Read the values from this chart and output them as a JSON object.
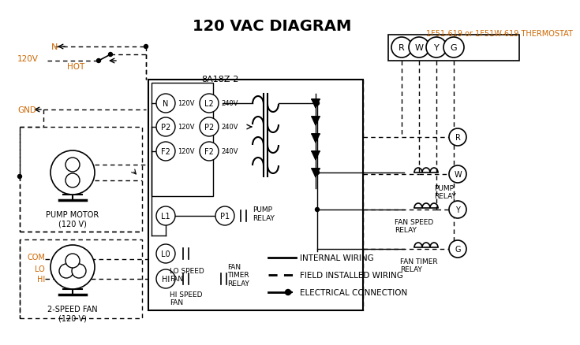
{
  "title": "120 VAC DIAGRAM",
  "title_color": "#000000",
  "title_fontsize": 14,
  "thermostat_label": "1F51-619 or 1F51W-619 THERMOSTAT",
  "orange_color": "#cc6600",
  "controller_label": "8A18Z-2",
  "bg_color": "#ffffff",
  "line_color": "#000000",
  "relay_labels": [
    "R",
    "W",
    "Y",
    "G"
  ],
  "left_terminals_120": [
    "N",
    "P2",
    "F2"
  ],
  "right_terminals_240": [
    "L2",
    "P2",
    "F2"
  ],
  "pump_motor_label": "PUMP MOTOR\n(120 V)",
  "fan_label": "2-SPEED FAN\n(120 V)",
  "legend_items": [
    "INTERNAL WIRING",
    "FIELD INSTALLED WIRING",
    "ELECTRICAL CONNECTION"
  ]
}
